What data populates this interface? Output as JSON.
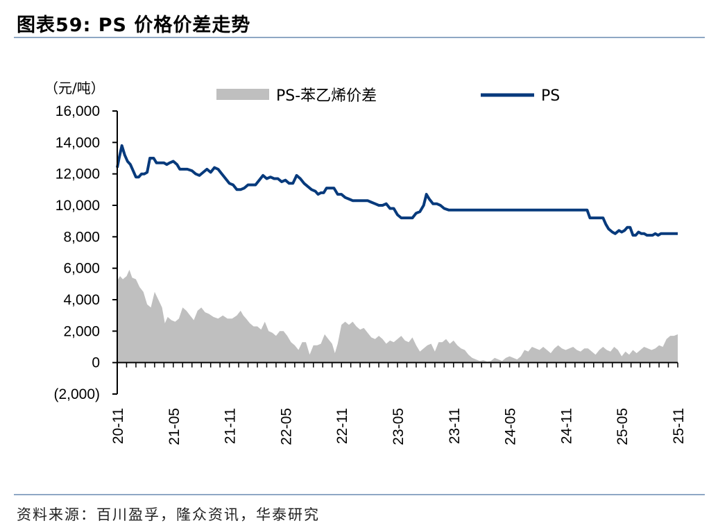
{
  "title": "图表59:   PS 价格价差走势",
  "source": "资料来源：百川盈孚，隆众资讯，华泰研究",
  "colors": {
    "spread": "#bfbfbf",
    "price": "#073a7c",
    "rule": "#8ea7c4",
    "axis": "#000000"
  },
  "chart_data": {
    "type": "line+area",
    "unit": "（元/吨）",
    "ylim": [
      -2000,
      16000
    ],
    "yticks": [
      -2000,
      0,
      2000,
      4000,
      6000,
      8000,
      10000,
      12000,
      14000,
      16000
    ],
    "ytick_labels": [
      "(2,000)",
      "0",
      "2,000",
      "4,000",
      "6,000",
      "8,000",
      "10,000",
      "12,000",
      "14,000",
      "16,000"
    ],
    "xlim": [
      0,
      60
    ],
    "xticks": [
      0,
      6,
      12,
      18,
      24,
      30,
      36,
      42,
      48,
      54,
      60
    ],
    "xtick_labels": [
      "20-11",
      "21-05",
      "21-11",
      "22-05",
      "22-11",
      "23-05",
      "23-11",
      "24-05",
      "24-11",
      "25-05",
      "25-11"
    ],
    "series": [
      {
        "name": "PS-苯乙烯价差",
        "kind": "area",
        "points": [
          [
            0.0,
            5200
          ],
          [
            0.3,
            5500
          ],
          [
            0.6,
            5300
          ],
          [
            1.0,
            5500
          ],
          [
            1.3,
            5900
          ],
          [
            1.6,
            5400
          ],
          [
            2.0,
            5300
          ],
          [
            2.4,
            4800
          ],
          [
            2.8,
            4500
          ],
          [
            3.2,
            3700
          ],
          [
            3.6,
            3500
          ],
          [
            4.0,
            4500
          ],
          [
            4.4,
            4000
          ],
          [
            4.8,
            3500
          ],
          [
            5.1,
            2500
          ],
          [
            5.4,
            2900
          ],
          [
            5.8,
            2700
          ],
          [
            6.2,
            2600
          ],
          [
            6.6,
            2800
          ],
          [
            7.0,
            3500
          ],
          [
            7.4,
            3300
          ],
          [
            7.8,
            3000
          ],
          [
            8.2,
            2700
          ],
          [
            8.6,
            3300
          ],
          [
            9.0,
            3500
          ],
          [
            9.4,
            3200
          ],
          [
            9.8,
            3100
          ],
          [
            10.3,
            2900
          ],
          [
            10.8,
            2800
          ],
          [
            11.3,
            3000
          ],
          [
            11.8,
            2800
          ],
          [
            12.3,
            2800
          ],
          [
            12.8,
            3000
          ],
          [
            13.2,
            3300
          ],
          [
            13.5,
            3000
          ],
          [
            13.8,
            2800
          ],
          [
            14.2,
            2500
          ],
          [
            14.6,
            2300
          ],
          [
            15.0,
            2300
          ],
          [
            15.4,
            2100
          ],
          [
            15.8,
            2600
          ],
          [
            16.2,
            2000
          ],
          [
            16.6,
            1900
          ],
          [
            17.0,
            1700
          ],
          [
            17.4,
            2000
          ],
          [
            17.8,
            2000
          ],
          [
            18.2,
            1700
          ],
          [
            18.6,
            1300
          ],
          [
            19.0,
            1100
          ],
          [
            19.4,
            800
          ],
          [
            19.8,
            1300
          ],
          [
            20.2,
            1300
          ],
          [
            20.6,
            500
          ],
          [
            21.0,
            1100
          ],
          [
            21.4,
            1100
          ],
          [
            21.8,
            1200
          ],
          [
            22.2,
            1800
          ],
          [
            22.6,
            1500
          ],
          [
            23.0,
            1200
          ],
          [
            23.3,
            600
          ],
          [
            23.6,
            1200
          ],
          [
            24.0,
            2400
          ],
          [
            24.4,
            2600
          ],
          [
            24.8,
            2400
          ],
          [
            25.2,
            2600
          ],
          [
            25.6,
            2300
          ],
          [
            26.0,
            2100
          ],
          [
            26.4,
            2200
          ],
          [
            26.8,
            1900
          ],
          [
            27.2,
            1600
          ],
          [
            27.6,
            1500
          ],
          [
            28.0,
            1700
          ],
          [
            28.4,
            1500
          ],
          [
            28.8,
            1200
          ],
          [
            29.2,
            1400
          ],
          [
            29.6,
            1300
          ],
          [
            30.0,
            1500
          ],
          [
            30.4,
            1700
          ],
          [
            30.8,
            1400
          ],
          [
            31.2,
            1300
          ],
          [
            31.6,
            1600
          ],
          [
            32.0,
            1100
          ],
          [
            32.4,
            700
          ],
          [
            32.8,
            900
          ],
          [
            33.2,
            1100
          ],
          [
            33.6,
            1200
          ],
          [
            34.0,
            700
          ],
          [
            34.4,
            1300
          ],
          [
            34.8,
            1300
          ],
          [
            35.2,
            1500
          ],
          [
            35.6,
            1200
          ],
          [
            36.0,
            1400
          ],
          [
            36.4,
            1100
          ],
          [
            36.8,
            900
          ],
          [
            37.2,
            800
          ],
          [
            37.6,
            500
          ],
          [
            38.0,
            300
          ],
          [
            38.4,
            200
          ],
          [
            38.8,
            100
          ],
          [
            39.2,
            150
          ],
          [
            39.6,
            60
          ],
          [
            40.0,
            100
          ],
          [
            40.4,
            300
          ],
          [
            40.8,
            200
          ],
          [
            41.2,
            100
          ],
          [
            41.6,
            300
          ],
          [
            42.0,
            400
          ],
          [
            42.4,
            300
          ],
          [
            42.8,
            200
          ],
          [
            43.2,
            400
          ],
          [
            43.6,
            800
          ],
          [
            44.0,
            700
          ],
          [
            44.4,
            1000
          ],
          [
            44.8,
            900
          ],
          [
            45.2,
            800
          ],
          [
            45.6,
            1000
          ],
          [
            46.0,
            800
          ],
          [
            46.4,
            600
          ],
          [
            46.8,
            900
          ],
          [
            47.2,
            1100
          ],
          [
            47.6,
            900
          ],
          [
            48.0,
            800
          ],
          [
            48.4,
            900
          ],
          [
            48.8,
            1000
          ],
          [
            49.2,
            800
          ],
          [
            49.6,
            700
          ],
          [
            50.0,
            900
          ],
          [
            50.4,
            900
          ],
          [
            50.8,
            700
          ],
          [
            51.2,
            500
          ],
          [
            51.6,
            800
          ],
          [
            52.0,
            1000
          ],
          [
            52.4,
            800
          ],
          [
            52.8,
            700
          ],
          [
            53.2,
            1000
          ],
          [
            53.6,
            800
          ],
          [
            54.0,
            400
          ],
          [
            54.4,
            700
          ],
          [
            54.8,
            500
          ],
          [
            55.2,
            800
          ],
          [
            55.6,
            600
          ],
          [
            56.0,
            800
          ],
          [
            56.4,
            1000
          ],
          [
            56.8,
            900
          ],
          [
            57.2,
            800
          ],
          [
            57.6,
            900
          ],
          [
            58.0,
            1100
          ],
          [
            58.4,
            1000
          ],
          [
            58.8,
            1500
          ],
          [
            59.2,
            1700
          ],
          [
            59.6,
            1700
          ],
          [
            60.0,
            1800
          ]
        ]
      },
      {
        "name": "PS",
        "kind": "line",
        "points": [
          [
            0.0,
            12400
          ],
          [
            0.2,
            13000
          ],
          [
            0.5,
            13800
          ],
          [
            0.8,
            13200
          ],
          [
            1.1,
            12800
          ],
          [
            1.4,
            12600
          ],
          [
            1.7,
            12200
          ],
          [
            2.0,
            11800
          ],
          [
            2.3,
            11800
          ],
          [
            2.6,
            12000
          ],
          [
            2.9,
            12000
          ],
          [
            3.2,
            12100
          ],
          [
            3.5,
            13000
          ],
          [
            3.9,
            13000
          ],
          [
            4.2,
            12700
          ],
          [
            4.6,
            12700
          ],
          [
            5.0,
            12700
          ],
          [
            5.3,
            12600
          ],
          [
            5.6,
            12700
          ],
          [
            6.0,
            12800
          ],
          [
            6.4,
            12600
          ],
          [
            6.7,
            12300
          ],
          [
            7.0,
            12300
          ],
          [
            7.5,
            12300
          ],
          [
            8.0,
            12200
          ],
          [
            8.4,
            12000
          ],
          [
            8.8,
            11900
          ],
          [
            9.2,
            12100
          ],
          [
            9.6,
            12300
          ],
          [
            10.0,
            12100
          ],
          [
            10.4,
            12400
          ],
          [
            10.8,
            12300
          ],
          [
            11.2,
            12000
          ],
          [
            11.6,
            11700
          ],
          [
            12.0,
            11400
          ],
          [
            12.4,
            11300
          ],
          [
            12.8,
            11000
          ],
          [
            13.2,
            11000
          ],
          [
            13.6,
            11100
          ],
          [
            14.0,
            11300
          ],
          [
            14.4,
            11300
          ],
          [
            14.8,
            11300
          ],
          [
            15.2,
            11600
          ],
          [
            15.6,
            11900
          ],
          [
            16.0,
            11700
          ],
          [
            16.4,
            11800
          ],
          [
            16.8,
            11700
          ],
          [
            17.2,
            11700
          ],
          [
            17.6,
            11500
          ],
          [
            18.0,
            11600
          ],
          [
            18.4,
            11400
          ],
          [
            18.8,
            11400
          ],
          [
            19.2,
            11900
          ],
          [
            19.6,
            11700
          ],
          [
            20.0,
            11400
          ],
          [
            20.4,
            11200
          ],
          [
            20.8,
            11000
          ],
          [
            21.2,
            10900
          ],
          [
            21.5,
            10700
          ],
          [
            21.8,
            10800
          ],
          [
            22.1,
            10800
          ],
          [
            22.4,
            11100
          ],
          [
            22.8,
            11100
          ],
          [
            23.2,
            11100
          ],
          [
            23.6,
            10700
          ],
          [
            24.0,
            10700
          ],
          [
            24.4,
            10500
          ],
          [
            24.8,
            10400
          ],
          [
            25.2,
            10300
          ],
          [
            25.6,
            10300
          ],
          [
            26.0,
            10300
          ],
          [
            26.4,
            10300
          ],
          [
            26.8,
            10300
          ],
          [
            27.2,
            10200
          ],
          [
            27.6,
            10100
          ],
          [
            28.0,
            10000
          ],
          [
            28.4,
            10000
          ],
          [
            28.8,
            10100
          ],
          [
            29.2,
            9800
          ],
          [
            29.6,
            9800
          ],
          [
            30.0,
            9400
          ],
          [
            30.4,
            9200
          ],
          [
            30.8,
            9200
          ],
          [
            31.2,
            9200
          ],
          [
            31.6,
            9200
          ],
          [
            32.0,
            9500
          ],
          [
            32.4,
            9600
          ],
          [
            32.8,
            10000
          ],
          [
            33.1,
            10700
          ],
          [
            33.4,
            10400
          ],
          [
            33.8,
            10100
          ],
          [
            34.2,
            10100
          ],
          [
            34.6,
            10000
          ],
          [
            35.0,
            9800
          ],
          [
            35.5,
            9700
          ],
          [
            36.0,
            9700
          ],
          [
            37.0,
            9700
          ],
          [
            38.0,
            9700
          ],
          [
            39.0,
            9700
          ],
          [
            40.0,
            9700
          ],
          [
            41.0,
            9700
          ],
          [
            42.0,
            9700
          ],
          [
            43.0,
            9700
          ],
          [
            44.0,
            9700
          ],
          [
            45.0,
            9700
          ],
          [
            46.0,
            9700
          ],
          [
            47.0,
            9700
          ],
          [
            48.0,
            9700
          ],
          [
            49.0,
            9700
          ],
          [
            50.3,
            9700
          ],
          [
            50.6,
            9200
          ],
          [
            51.0,
            9200
          ],
          [
            51.5,
            9200
          ],
          [
            52.0,
            9200
          ],
          [
            52.3,
            8800
          ],
          [
            52.6,
            8500
          ],
          [
            53.0,
            8300
          ],
          [
            53.3,
            8200
          ],
          [
            53.7,
            8400
          ],
          [
            54.0,
            8300
          ],
          [
            54.3,
            8400
          ],
          [
            54.6,
            8600
          ],
          [
            54.9,
            8600
          ],
          [
            55.2,
            8100
          ],
          [
            55.5,
            8100
          ],
          [
            55.8,
            8300
          ],
          [
            56.1,
            8200
          ],
          [
            56.4,
            8200
          ],
          [
            56.7,
            8100
          ],
          [
            57.0,
            8100
          ],
          [
            57.3,
            8100
          ],
          [
            57.6,
            8200
          ],
          [
            57.9,
            8100
          ],
          [
            58.2,
            8200
          ],
          [
            58.5,
            8200
          ],
          [
            59.0,
            8200
          ],
          [
            59.5,
            8200
          ],
          [
            60.0,
            8200
          ]
        ]
      }
    ]
  }
}
